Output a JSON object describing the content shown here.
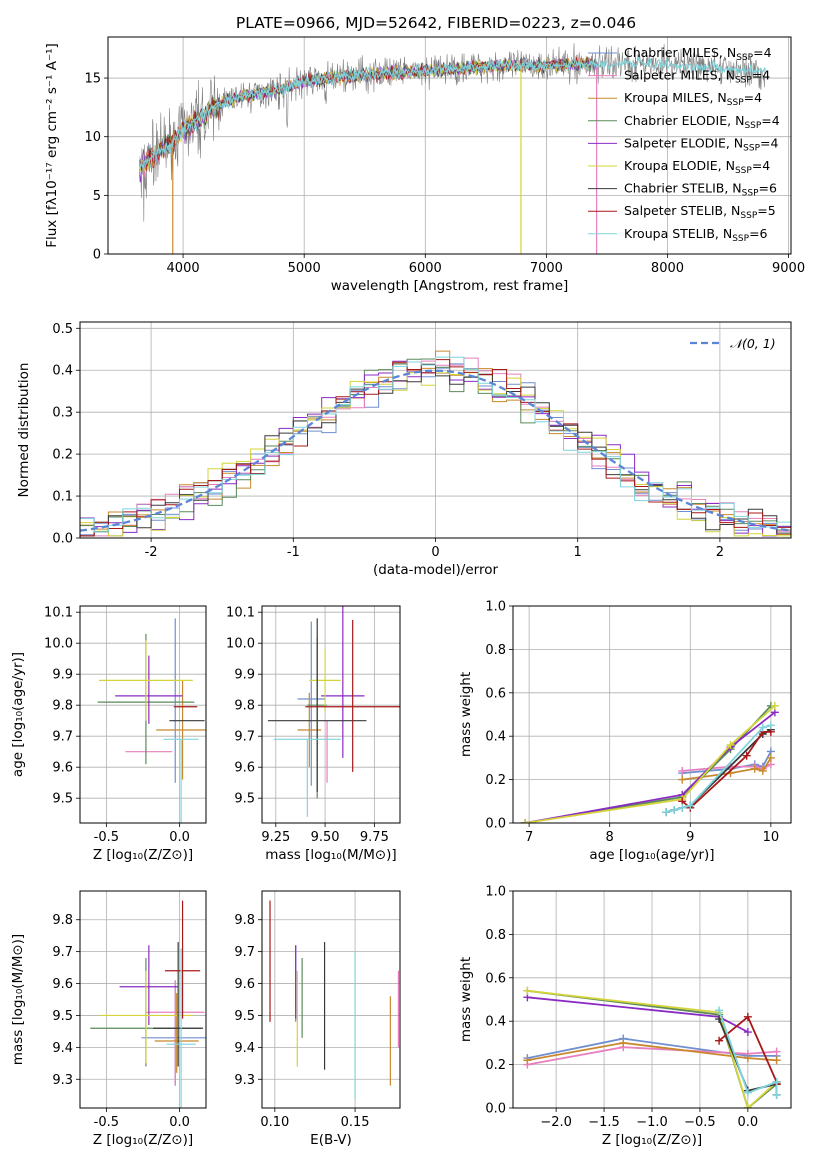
{
  "title": "PLATE=0966, MJD=52642, FIBERID=0223, z=0.046",
  "colors": [
    "#6f8fcf",
    "#e87fbf",
    "#c8892e",
    "#5a8a5a",
    "#8a2bc4",
    "#d4d43a",
    "#3a3a3a",
    "#a81818",
    "#7fd4dc"
  ],
  "legend_labels": [
    "Chabrier MILES, N",
    "Salpeter MILES, N",
    "Kroupa MILES, N",
    "Chabrier ELODIE, N",
    "Salpeter ELODIE, N",
    "Kroupa ELODIE, N",
    "Chabrier STELIB, N",
    "Salpeter STELIB, N",
    "Kroupa STELIB, N"
  ],
  "legend_sub": "SSP",
  "legend_nssp": [
    "=4",
    "=4",
    "=4",
    "=4",
    "=4",
    "=4",
    "=6",
    "=5",
    "=6"
  ],
  "chart_data": [
    {
      "type": "line",
      "name": "spectrum",
      "xlabel": "wavelength [Angstrom, rest frame]",
      "ylabel": "Flux [fλ10⁻¹⁷ erg cm⁻² s⁻¹ A⁻¹]",
      "xlim": [
        3380,
        9020
      ],
      "ylim": [
        0,
        18.5
      ],
      "xticks": [
        4000,
        5000,
        6000,
        7000,
        8000,
        9000
      ],
      "yticks": [
        0,
        5,
        10,
        15
      ],
      "data_x_range": [
        3640,
        8810
      ],
      "model_x_range": [
        3640,
        7420
      ],
      "continuum": [
        [
          3640,
          7.5
        ],
        [
          3900,
          9.5
        ],
        [
          4000,
          10.5
        ],
        [
          4300,
          12.8
        ],
        [
          4500,
          13.5
        ],
        [
          4800,
          14.0
        ],
        [
          5000,
          14.7
        ],
        [
          5500,
          15.3
        ],
        [
          6000,
          15.6
        ],
        [
          6500,
          16.0
        ],
        [
          7000,
          16.1
        ],
        [
          7400,
          16.2
        ],
        [
          7800,
          16.3
        ],
        [
          8300,
          16.0
        ],
        [
          8810,
          15.5
        ]
      ]
    },
    {
      "type": "step",
      "name": "residual-histogram",
      "xlabel": "(data-model)/error",
      "ylabel": "Normed distribution",
      "xlim": [
        -2.5,
        2.5
      ],
      "ylim": [
        0,
        0.515
      ],
      "xticks": [
        -2,
        -1,
        0,
        1,
        2
      ],
      "yticks": [
        0.0,
        0.1,
        0.2,
        0.3,
        0.4,
        0.5
      ],
      "bin_width": 0.1,
      "bin_start": -2.5,
      "legend": "𝒩(0, 1)",
      "reference_curve": "normal(0,1)"
    },
    {
      "type": "scatter",
      "name": "age-vs-Z",
      "xlabel": "Z [log₁₀(Z/Z⊙)]",
      "ylabel": "age  [log₁₀(age/yr)]",
      "xlim": [
        -0.68,
        0.18
      ],
      "ylim": [
        9.42,
        10.12
      ],
      "xticks": [
        -0.5,
        0.0
      ],
      "yticks": [
        9.5,
        9.6,
        9.7,
        9.8,
        9.9,
        10.0,
        10.1
      ],
      "points": [
        {
          "x": -0.03,
          "y": 9.83,
          "xerr": 0.0,
          "yerr": [
            0.28,
            0.25
          ]
        },
        {
          "x": -0.21,
          "y": 9.65,
          "xerr": 0.16,
          "yerr": [
            0.0,
            0.0
          ]
        },
        {
          "x": 0.02,
          "y": 9.72,
          "xerr": 0.18,
          "yerr": [
            0.16,
            0.16
          ]
        },
        {
          "x": -0.23,
          "y": 9.81,
          "xerr": 0.33,
          "yerr": [
            0.2,
            0.22
          ]
        },
        {
          "x": -0.21,
          "y": 9.83,
          "xerr": 0.23,
          "yerr": [
            0.09,
            0.13
          ]
        },
        {
          "x": -0.23,
          "y": 9.88,
          "xerr": 0.32,
          "yerr": [
            0.13,
            0.13
          ]
        },
        {
          "x": 0.05,
          "y": 9.75,
          "xerr": 0.12,
          "yerr": [
            0.0,
            0.0
          ]
        },
        {
          "x": 0.04,
          "y": 9.795,
          "xerr": 0.08,
          "yerr": [
            0.0,
            0.0
          ]
        },
        {
          "x": 0.01,
          "y": 9.69,
          "xerr": 0.12,
          "yerr": [
            0.3,
            0.0
          ]
        }
      ]
    },
    {
      "type": "scatter",
      "name": "age-vs-mass",
      "xlabel": "mass [log₁₀(M/M⊙)]",
      "ylabel": "",
      "xlim": [
        9.18,
        9.88
      ],
      "ylim": [
        9.42,
        10.12
      ],
      "xticks": [
        9.25,
        9.5,
        9.75
      ],
      "yticks": [
        9.5,
        9.6,
        9.7,
        9.8,
        9.9,
        10.0,
        10.1
      ],
      "points": [
        {
          "x": 9.43,
          "y": 9.82,
          "xerr": 0.07,
          "yerr": [
            0.28,
            0.25
          ]
        },
        {
          "x": 9.51,
          "y": 9.65,
          "xerr": 0.0,
          "yerr": [
            0.1,
            0.1
          ]
        },
        {
          "x": 9.42,
          "y": 9.72,
          "xerr": 0.06,
          "yerr": [
            0.12,
            0.12
          ]
        },
        {
          "x": 9.46,
          "y": 9.8,
          "xerr": 0.05,
          "yerr": [
            0.3,
            0.22
          ]
        },
        {
          "x": 9.59,
          "y": 9.83,
          "xerr": 0.11,
          "yerr": [
            0.2,
            0.3
          ]
        },
        {
          "x": 9.5,
          "y": 9.88,
          "xerr": 0.08,
          "yerr": [
            0.1,
            0.1
          ]
        },
        {
          "x": 9.46,
          "y": 9.75,
          "xerr": 0.25,
          "yerr": [
            0.23,
            0.33
          ]
        },
        {
          "x": 9.64,
          "y": 9.795,
          "xerr": 0.24,
          "yerr": [
            0.21,
            0.28
          ]
        },
        {
          "x": 9.41,
          "y": 9.69,
          "xerr": 0.17,
          "yerr": [
            0.25,
            0.0
          ]
        }
      ]
    },
    {
      "type": "line",
      "name": "mass-weight-vs-age",
      "xlabel": "age  [log₁₀(age/yr)]",
      "ylabel": "mass weight",
      "xlim": [
        6.8,
        10.25
      ],
      "ylim": [
        0,
        1
      ],
      "xticks": [
        7,
        8,
        9,
        10
      ],
      "yticks": [
        0.0,
        0.2,
        0.4,
        0.6,
        0.8,
        1.0
      ],
      "series": [
        {
          "x": [
            8.9,
            9.5,
            9.8,
            9.9,
            10.0
          ],
          "y": [
            0.23,
            0.25,
            0.27,
            0.26,
            0.33
          ]
        },
        {
          "x": [
            8.9,
            9.5,
            9.8,
            9.9,
            10.0
          ],
          "y": [
            0.24,
            0.26,
            0.26,
            0.25,
            0.27
          ]
        },
        {
          "x": [
            8.9,
            9.5,
            9.8,
            9.9,
            10.0
          ],
          "y": [
            0.2,
            0.23,
            0.25,
            0.24,
            0.3
          ]
        },
        {
          "x": [
            6.95,
            8.9,
            9.5,
            10.0
          ],
          "y": [
            0.0,
            0.12,
            0.34,
            0.54
          ]
        },
        {
          "x": [
            6.95,
            8.9,
            9.5,
            10.05
          ],
          "y": [
            0.0,
            0.13,
            0.35,
            0.51
          ]
        },
        {
          "x": [
            6.95,
            8.9,
            9.5,
            10.05
          ],
          "y": [
            0.0,
            0.11,
            0.36,
            0.54
          ]
        },
        {
          "x": [
            8.7,
            8.8,
            8.9,
            9.0,
            9.9,
            10.0
          ],
          "y": [
            0.05,
            0.06,
            0.07,
            0.08,
            0.41,
            0.43
          ]
        },
        {
          "x": [
            8.9,
            9.0,
            9.7,
            9.9,
            10.0
          ],
          "y": [
            0.1,
            0.07,
            0.31,
            0.42,
            0.42
          ]
        },
        {
          "x": [
            8.7,
            8.8,
            8.9,
            9.0,
            9.9,
            10.0
          ],
          "y": [
            0.05,
            0.06,
            0.07,
            0.08,
            0.44,
            0.45
          ]
        }
      ]
    },
    {
      "type": "scatter",
      "name": "mass-vs-Z",
      "xlabel": "Z [log₁₀(Z/Z⊙)]",
      "ylabel": "mass [log₁₀(M/M⊙)]",
      "xlim": [
        -0.68,
        0.18
      ],
      "ylim": [
        9.21,
        9.89
      ],
      "xticks": [
        -0.5,
        0.0
      ],
      "yticks": [
        9.3,
        9.4,
        9.5,
        9.6,
        9.7,
        9.8
      ],
      "points": [
        {
          "x": -0.03,
          "y": 9.43,
          "xerr": 0.23,
          "yerr": [
            0.15,
            0.18
          ]
        },
        {
          "x": -0.03,
          "y": 9.51,
          "xerr": 0.2,
          "yerr": [
            0.23,
            0.1
          ]
        },
        {
          "x": -0.02,
          "y": 9.42,
          "xerr": 0.15,
          "yerr": [
            0.1,
            0.15
          ]
        },
        {
          "x": -0.23,
          "y": 9.46,
          "xerr": 0.38,
          "yerr": [
            0.12,
            0.22
          ]
        },
        {
          "x": -0.21,
          "y": 9.59,
          "xerr": 0.2,
          "yerr": [
            0.12,
            0.13
          ]
        },
        {
          "x": -0.23,
          "y": 9.5,
          "xerr": 0.32,
          "yerr": [
            0.15,
            0.14
          ]
        },
        {
          "x": -0.01,
          "y": 9.46,
          "xerr": 0.17,
          "yerr": [
            0.12,
            0.27
          ]
        },
        {
          "x": 0.02,
          "y": 9.64,
          "xerr": 0.12,
          "yerr": [
            0.15,
            0.22
          ]
        },
        {
          "x": 0.01,
          "y": 9.41,
          "xerr": 0.1,
          "yerr": [
            0.22,
            0.3
          ]
        }
      ]
    },
    {
      "type": "scatter",
      "name": "mass-vs-EBV",
      "xlabel": "E(B-V)",
      "ylabel": "",
      "xlim": [
        0.092,
        0.178
      ],
      "ylim": [
        9.21,
        9.89
      ],
      "xticks": [
        0.1,
        0.15
      ],
      "yticks": [
        9.3,
        9.4,
        9.5,
        9.6,
        9.7,
        9.8
      ],
      "points": [
        {
          "x": 0.113,
          "y": 9.6,
          "xerr": 0.0,
          "yerr": [
            0.12,
            0.12
          ]
        },
        {
          "x": 0.177,
          "y": 9.52,
          "xerr": 0.0,
          "yerr": [
            0.12,
            0.12
          ]
        },
        {
          "x": 0.172,
          "y": 9.42,
          "xerr": 0.0,
          "yerr": [
            0.14,
            0.14
          ]
        },
        {
          "x": 0.117,
          "y": 9.56,
          "xerr": 0.0,
          "yerr": [
            0.13,
            0.12
          ]
        },
        {
          "x": 0.113,
          "y": 9.61,
          "xerr": 0.0,
          "yerr": [
            0.12,
            0.11
          ]
        },
        {
          "x": 0.114,
          "y": 9.49,
          "xerr": 0.0,
          "yerr": [
            0.15,
            0.15
          ]
        },
        {
          "x": 0.131,
          "y": 9.53,
          "xerr": 0.0,
          "yerr": [
            0.2,
            0.2
          ]
        },
        {
          "x": 0.097,
          "y": 9.67,
          "xerr": 0.0,
          "yerr": [
            0.19,
            0.19
          ]
        },
        {
          "x": 0.15,
          "y": 9.47,
          "xerr": 0.0,
          "yerr": [
            0.23,
            0.23
          ]
        }
      ]
    },
    {
      "type": "line",
      "name": "mass-weight-vs-Z",
      "xlabel": "Z [log₁₀(Z/Z⊙)]",
      "ylabel": "mass weight",
      "xlim": [
        -2.45,
        0.45
      ],
      "ylim": [
        0,
        1
      ],
      "xticks": [
        -2.0,
        -1.5,
        -1.0,
        -0.5,
        0.0
      ],
      "yticks": [
        0.0,
        0.2,
        0.4,
        0.6,
        0.8,
        1.0
      ],
      "series": [
        {
          "x": [
            -2.3,
            -1.3,
            0.0,
            0.3
          ],
          "y": [
            0.23,
            0.32,
            0.24,
            0.24
          ]
        },
        {
          "x": [
            -2.3,
            -1.3,
            0.0,
            0.3
          ],
          "y": [
            0.2,
            0.28,
            0.25,
            0.26
          ]
        },
        {
          "x": [
            -2.3,
            -1.3,
            0.0,
            0.3
          ],
          "y": [
            0.22,
            0.3,
            0.23,
            0.22
          ]
        },
        {
          "x": [
            -2.3,
            -0.3,
            0.0,
            0.3
          ],
          "y": [
            0.54,
            0.43,
            0.0,
            0.11
          ]
        },
        {
          "x": [
            -2.3,
            -0.3,
            0.0
          ],
          "y": [
            0.51,
            0.42,
            0.35
          ]
        },
        {
          "x": [
            -2.3,
            -0.3,
            0.0,
            0.3
          ],
          "y": [
            0.54,
            0.44,
            0.0,
            0.12
          ]
        },
        {
          "x": [
            -0.3,
            0.0,
            0.3,
            0.3
          ],
          "y": [
            0.41,
            0.08,
            0.11,
            0.06
          ]
        },
        {
          "x": [
            -0.3,
            0.0,
            0.3,
            0.3
          ],
          "y": [
            0.31,
            0.42,
            0.12,
            0.11
          ]
        },
        {
          "x": [
            -0.3,
            0.0,
            0.3,
            0.3
          ],
          "y": [
            0.45,
            0.07,
            0.12,
            0.06
          ]
        }
      ]
    }
  ]
}
